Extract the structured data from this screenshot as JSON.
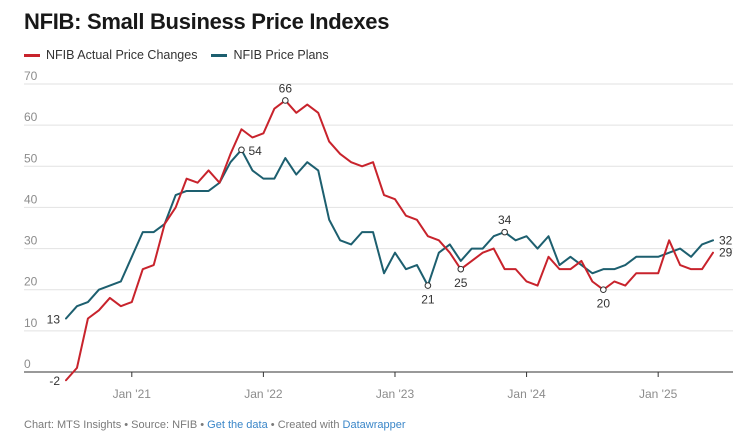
{
  "title": "NFIB: Small Business Price Indexes",
  "colors": {
    "actual": "#c8232c",
    "plans": "#1d5f6f",
    "grid": "#e2e2e2",
    "axis": "#333333"
  },
  "legend": {
    "actual": "NFIB Actual Price Changes",
    "plans": "NFIB Price Plans"
  },
  "footer": {
    "chart": "Chart: MTS Insights",
    "source": "Source: NFIB",
    "get_data": "Get the data",
    "created": "Created with",
    "tool": "Datawrapper",
    "sep": " • "
  },
  "chart_data": {
    "type": "line",
    "title": "NFIB: Small Business Price Indexes",
    "ylim": [
      0,
      70
    ],
    "yticks": [
      0,
      10,
      20,
      30,
      40,
      50,
      60,
      70
    ],
    "xlim": [
      0,
      59
    ],
    "x_start": "Jul 2020",
    "x_ticks": [
      {
        "index": 6,
        "label": "Jan '21"
      },
      {
        "index": 18,
        "label": "Jan '22"
      },
      {
        "index": 30,
        "label": "Jan '23"
      },
      {
        "index": 42,
        "label": "Jan '24"
      },
      {
        "index": 54,
        "label": "Jan '25"
      }
    ],
    "series": [
      {
        "name": "NFIB Actual Price Changes",
        "color": "#c8232c",
        "values": [
          -2,
          1,
          13,
          15,
          18,
          16,
          17,
          25,
          26,
          36,
          40,
          47,
          46,
          49,
          46,
          53,
          59,
          57,
          58,
          64,
          66,
          63,
          65,
          63,
          56,
          53,
          51,
          50,
          51,
          43,
          42,
          38,
          37,
          33,
          32,
          29,
          25,
          27,
          29,
          30,
          25,
          25,
          22,
          21,
          28,
          25,
          25,
          27,
          22,
          20,
          22,
          21,
          24,
          24,
          24,
          32,
          26,
          25,
          25,
          29
        ]
      },
      {
        "name": "NFIB Price Plans",
        "color": "#1d5f6f",
        "values": [
          13,
          16,
          17,
          20,
          21,
          22,
          28,
          34,
          34,
          36,
          43,
          44,
          44,
          44,
          46,
          51,
          54,
          49,
          47,
          47,
          52,
          48,
          51,
          49,
          37,
          32,
          31,
          34,
          34,
          24,
          29,
          25,
          26,
          21,
          29,
          31,
          27,
          30,
          30,
          33,
          34,
          32,
          33,
          30,
          33,
          26,
          28,
          26,
          24,
          25,
          25,
          26,
          28,
          28,
          28,
          29,
          30,
          28,
          31,
          32
        ]
      }
    ],
    "annotations": [
      {
        "series": 0,
        "index": 0,
        "value": -2,
        "text": "-2",
        "marker": false,
        "pos": "left"
      },
      {
        "series": 1,
        "index": 0,
        "value": 13,
        "text": "13",
        "marker": false,
        "pos": "left"
      },
      {
        "series": 1,
        "index": 16,
        "value": 54,
        "text": "54",
        "marker": true,
        "pos": "right"
      },
      {
        "series": 0,
        "index": 20,
        "value": 66,
        "text": "66",
        "marker": true,
        "pos": "above"
      },
      {
        "series": 1,
        "index": 33,
        "value": 21,
        "text": "21",
        "marker": true,
        "pos": "below"
      },
      {
        "series": 0,
        "index": 36,
        "value": 25,
        "text": "25",
        "marker": true,
        "pos": "below"
      },
      {
        "series": 1,
        "index": 40,
        "value": 34,
        "text": "34",
        "marker": true,
        "pos": "above"
      },
      {
        "series": 0,
        "index": 49,
        "value": 20,
        "text": "20",
        "marker": true,
        "pos": "below"
      },
      {
        "series": 1,
        "index": 59,
        "value": 32,
        "text": "32",
        "marker": false,
        "pos": "end"
      },
      {
        "series": 0,
        "index": 59,
        "value": 29,
        "text": "29",
        "marker": false,
        "pos": "end"
      }
    ]
  }
}
